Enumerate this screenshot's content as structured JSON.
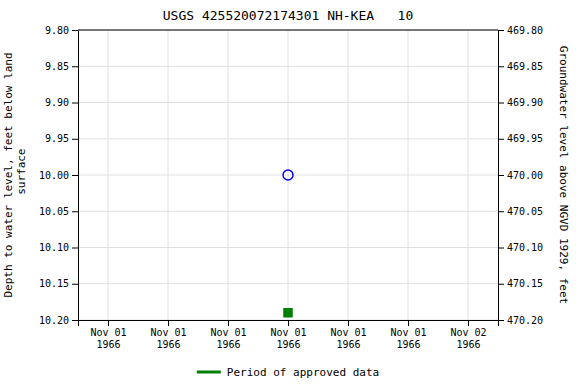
{
  "chart_data": {
    "type": "scatter",
    "title": "USGS 425520072174301 NH-KEA   10",
    "ylabel": "Depth to water level, feet below land\n surface",
    "y2label": "Groundwater level above NGVD 1929, feet",
    "categories": [
      "Nov 01\n1966",
      "Nov 01\n1966",
      "Nov 01\n1966",
      "Nov 01\n1966",
      "Nov 01\n1966",
      "Nov 01\n1966",
      "Nov 02\n1966"
    ],
    "series": [
      {
        "color": "#0000ff",
        "marker": "circle-open",
        "values": [
          null,
          null,
          null,
          10.0,
          null,
          null,
          null
        ]
      },
      {
        "color": "#008000",
        "marker": "square",
        "values": [
          null,
          null,
          null,
          10.19,
          null,
          null,
          null
        ]
      },
      {
        "name": "Period of approved data",
        "type": "line",
        "color": "#008000",
        "line_style": "solid",
        "values": [
          null,
          null,
          null,
          null,
          null,
          null,
          null
        ]
      }
    ],
    "ylim": [
      10.2,
      9.8
    ],
    "yticks": [
      {
        "value": 9.8,
        "label": "9.80"
      },
      {
        "value": 9.85,
        "label": "9.85"
      },
      {
        "value": 9.9,
        "label": "9.90"
      },
      {
        "value": 9.95,
        "label": "9.95"
      },
      {
        "value": 10.0,
        "label": "10.00"
      },
      {
        "value": 10.05,
        "label": "10.05"
      },
      {
        "value": 10.1,
        "label": "10.10"
      },
      {
        "value": 10.15,
        "label": "10.15"
      },
      {
        "value": 10.2,
        "label": "10.20"
      }
    ],
    "y2lim": [
      470.2,
      469.8
    ],
    "y2ticks": [
      {
        "value": 470.2,
        "label": "470.20"
      },
      {
        "value": 470.15,
        "label": "470.15"
      },
      {
        "value": 470.1,
        "label": "470.10"
      },
      {
        "value": 470.05,
        "label": "470.05"
      },
      {
        "value": 470.0,
        "label": "470.00"
      },
      {
        "value": 469.95,
        "label": "469.95"
      },
      {
        "value": 469.9,
        "label": "469.90"
      },
      {
        "value": 469.85,
        "label": "469.85"
      },
      {
        "value": 469.8,
        "label": "469.80"
      }
    ],
    "grid": true,
    "legend": "bottom"
  }
}
